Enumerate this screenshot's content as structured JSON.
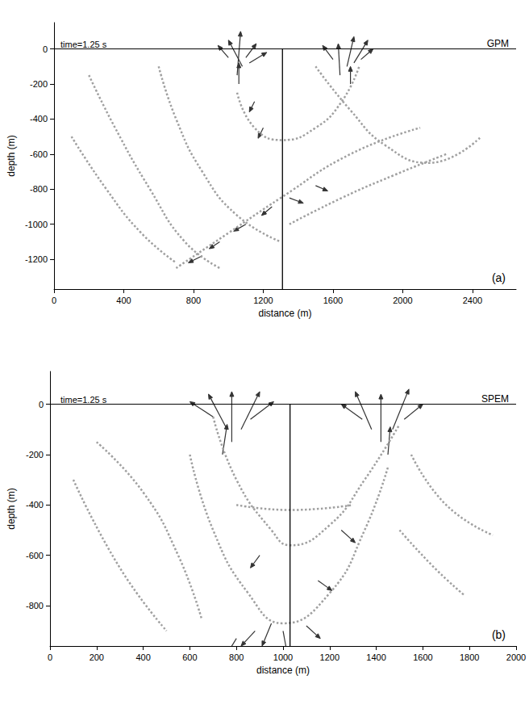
{
  "chart_data": [
    {
      "type": "vector",
      "title": "GPM",
      "annotation": "time=1.25 s",
      "panel": "(a)",
      "xlabel": "distance (m)",
      "ylabel": "depth (m)",
      "xlim": [
        0,
        2650
      ],
      "ylim": [
        -1370,
        150
      ],
      "xticks": [
        0,
        400,
        800,
        1200,
        1600,
        2000,
        2400
      ],
      "yticks": [
        0,
        -200,
        -400,
        -600,
        -800,
        -1000,
        -1200
      ],
      "vertical_line": 1310,
      "series": [
        {
          "type": "line",
          "color": "#a0a0a0",
          "line_style": "dotted",
          "values": [
            [
              [
                200,
                -150
              ],
              [
                350,
                -450
              ],
              [
                550,
                -800
              ],
              [
                750,
                -1100
              ],
              [
                950,
                -1250
              ]
            ],
            [
              [
                100,
                -500
              ],
              [
                300,
                -800
              ],
              [
                500,
                -1050
              ],
              [
                700,
                -1220
              ]
            ],
            [
              [
                600,
                -100
              ],
              [
                700,
                -400
              ],
              [
                850,
                -700
              ],
              [
                1050,
                -950
              ],
              [
                1300,
                -1100
              ]
            ],
            [
              [
                1500,
                -100
              ],
              [
                1700,
                -350
              ],
              [
                1900,
                -550
              ],
              [
                2150,
                -650
              ],
              [
                2450,
                -500
              ]
            ],
            [
              [
                1350,
                -1000
              ],
              [
                1650,
                -850
              ],
              [
                1950,
                -720
              ],
              [
                2250,
                -600
              ]
            ],
            [
              [
                1050,
                -250
              ],
              [
                1150,
                -450
              ],
              [
                1310,
                -520
              ],
              [
                1500,
                -450
              ],
              [
                1650,
                -300
              ],
              [
                1750,
                -100
              ]
            ],
            [
              [
                700,
                -1250
              ],
              [
                1000,
                -1050
              ],
              [
                1300,
                -850
              ],
              [
                1700,
                -600
              ],
              [
                2100,
                -450
              ]
            ]
          ]
        },
        {
          "type": "arrow",
          "color": "#333333",
          "values": [
            [
              1050,
              -150,
              20,
              250
            ],
            [
              1080,
              -100,
              -80,
              150
            ],
            [
              1000,
              -50,
              -60,
              70
            ],
            [
              1100,
              -50,
              60,
              80
            ],
            [
              1120,
              -80,
              100,
              60
            ],
            [
              1060,
              -200,
              0,
              120
            ],
            [
              1640,
              -150,
              -10,
              180
            ],
            [
              1680,
              -100,
              40,
              170
            ],
            [
              1720,
              -80,
              80,
              130
            ],
            [
              1600,
              -60,
              -60,
              80
            ],
            [
              1760,
              -60,
              70,
              60
            ],
            [
              1700,
              -200,
              0,
              100
            ],
            [
              850,
              -1180,
              -80,
              -40
            ],
            [
              950,
              -1100,
              -60,
              -40
            ],
            [
              1100,
              -1000,
              -70,
              -40
            ],
            [
              1250,
              -900,
              -60,
              -50
            ],
            [
              1350,
              -850,
              80,
              -30
            ],
            [
              1500,
              -780,
              70,
              -30
            ],
            [
              1150,
              -300,
              -30,
              -60
            ],
            [
              1200,
              -450,
              -30,
              -60
            ]
          ]
        }
      ]
    },
    {
      "type": "vector",
      "title": "SPEM",
      "annotation": "time=1.25 s",
      "panel": "(b)",
      "xlabel": "distance (m)",
      "ylabel": "depth (m)",
      "xlim": [
        0,
        2000
      ],
      "ylim": [
        -960,
        130
      ],
      "xticks": [
        0,
        200,
        400,
        600,
        800,
        1000,
        1200,
        1400,
        1600,
        1800,
        2000
      ],
      "yticks": [
        0,
        -200,
        -400,
        -600,
        -800
      ],
      "vertical_line": 1030,
      "series": [
        {
          "type": "line",
          "color": "#a0a0a0",
          "line_style": "dotted",
          "values": [
            [
              [
                100,
                -300
              ],
              [
                300,
                -650
              ],
              [
                500,
                -900
              ]
            ],
            [
              [
                600,
                -200
              ],
              [
                700,
                -500
              ],
              [
                850,
                -750
              ],
              [
                1000,
                -870
              ],
              [
                1200,
                -750
              ],
              [
                1350,
                -500
              ],
              [
                1450,
                -250
              ]
            ],
            [
              [
                700,
                -50
              ],
              [
                800,
                -300
              ],
              [
                950,
                -500
              ],
              [
                1030,
                -560
              ],
              [
                1200,
                -480
              ],
              [
                1350,
                -300
              ],
              [
                1500,
                -80
              ]
            ],
            [
              [
                1550,
                -200
              ],
              [
                1700,
                -400
              ],
              [
                1900,
                -520
              ]
            ],
            [
              [
                1500,
                -500
              ],
              [
                1650,
                -650
              ],
              [
                1780,
                -760
              ]
            ],
            [
              [
                200,
                -150
              ],
              [
                400,
                -350
              ],
              [
                550,
                -600
              ],
              [
                650,
                -850
              ]
            ],
            [
              [
                800,
                -400
              ],
              [
                1030,
                -420
              ],
              [
                1300,
                -400
              ]
            ]
          ]
        },
        {
          "type": "arrow",
          "color": "#333333",
          "values": [
            [
              780,
              -150,
              0,
              200
            ],
            [
              760,
              -100,
              -80,
              140
            ],
            [
              820,
              -100,
              80,
              150
            ],
            [
              700,
              -50,
              -100,
              60
            ],
            [
              860,
              -60,
              100,
              70
            ],
            [
              740,
              -200,
              20,
              120
            ],
            [
              1420,
              -150,
              0,
              190
            ],
            [
              1380,
              -100,
              -70,
              150
            ],
            [
              1470,
              -100,
              70,
              160
            ],
            [
              1520,
              -60,
              80,
              60
            ],
            [
              1340,
              -60,
              -90,
              60
            ],
            [
              1450,
              -200,
              10,
              110
            ],
            [
              950,
              -870,
              -40,
              -90
            ],
            [
              1000,
              -900,
              20,
              -100
            ],
            [
              880,
              -900,
              -60,
              -60
            ],
            [
              800,
              -930,
              -40,
              -60
            ],
            [
              1100,
              -880,
              60,
              -50
            ],
            [
              900,
              -600,
              -40,
              -50
            ],
            [
              1150,
              -700,
              60,
              -40
            ],
            [
              1250,
              -500,
              60,
              -50
            ]
          ]
        }
      ]
    }
  ]
}
